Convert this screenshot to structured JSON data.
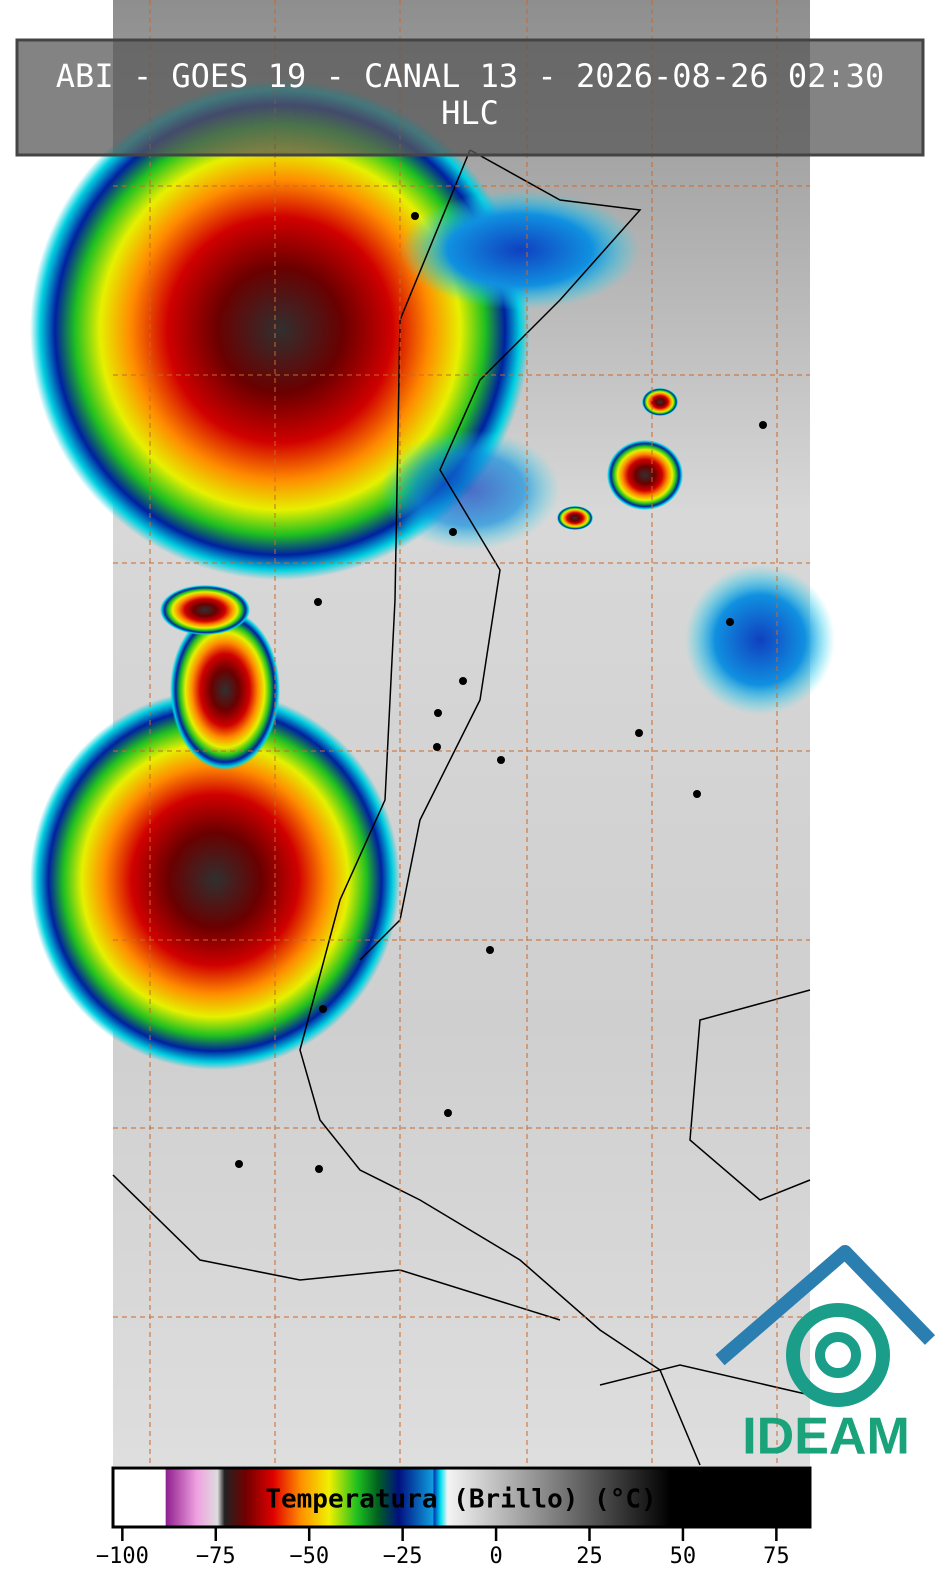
{
  "header": {
    "title": "ABI - GOES 19 - CANAL 13 - 2026-08-26 02:30",
    "subtitle": "HLC"
  },
  "colorbar": {
    "label": "Temperatura (Brillo) (°C)",
    "range": [
      -102.5,
      84
    ],
    "ticks": [
      {
        "value": -100,
        "label": "−100"
      },
      {
        "value": -75,
        "label": "−75"
      },
      {
        "value": -50,
        "label": "−50"
      },
      {
        "value": -25,
        "label": "−25"
      },
      0,
      25,
      50,
      75
    ]
  },
  "logo": {
    "text": "IDEAM"
  }
}
